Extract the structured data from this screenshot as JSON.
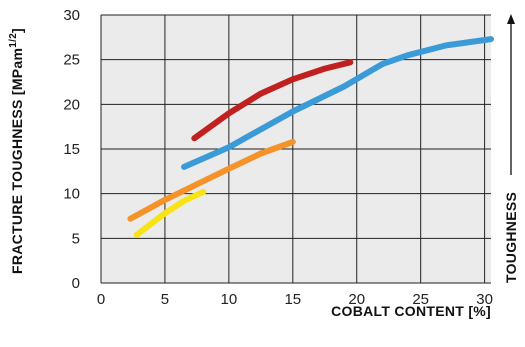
{
  "chart_data": {
    "type": "line",
    "xlabel": "COBALT CONTENT  [%]",
    "ylabel": "FRACTURE TOUGHNESS  [MPam",
    "ylabel_sup": "1/2",
    "ylabel_close": "]",
    "side_label": "TOUGHNESS",
    "xlim": [
      0,
      30.5
    ],
    "ylim": [
      0,
      30
    ],
    "x_ticks": [
      0,
      5,
      10,
      15,
      20,
      25,
      30
    ],
    "y_ticks": [
      0,
      5,
      10,
      15,
      20,
      25,
      30
    ],
    "grid": true,
    "plot_background": "#ebebeb",
    "series": [
      {
        "color": "#c0201f",
        "points": [
          [
            7.3,
            16.2
          ],
          [
            10,
            19
          ],
          [
            12.5,
            21.2
          ],
          [
            15,
            22.8
          ],
          [
            17.5,
            24.0
          ],
          [
            19.5,
            24.7
          ]
        ]
      },
      {
        "color": "#3b9ad8",
        "points": [
          [
            6.5,
            13.0
          ],
          [
            10,
            15.2
          ],
          [
            15,
            19.2
          ],
          [
            19,
            22.0
          ],
          [
            22,
            24.5
          ],
          [
            24,
            25.5
          ],
          [
            27,
            26.6
          ],
          [
            30.5,
            27.3
          ]
        ]
      },
      {
        "color": "#f5922a",
        "points": [
          [
            2.3,
            7.2
          ],
          [
            5,
            9.3
          ],
          [
            8,
            11.4
          ],
          [
            10,
            12.8
          ],
          [
            12.5,
            14.5
          ],
          [
            15,
            15.8
          ]
        ]
      },
      {
        "color": "#f8e316",
        "points": [
          [
            2.8,
            5.4
          ],
          [
            5,
            7.8
          ],
          [
            6.5,
            9.2
          ],
          [
            8,
            10.2
          ]
        ]
      }
    ]
  }
}
